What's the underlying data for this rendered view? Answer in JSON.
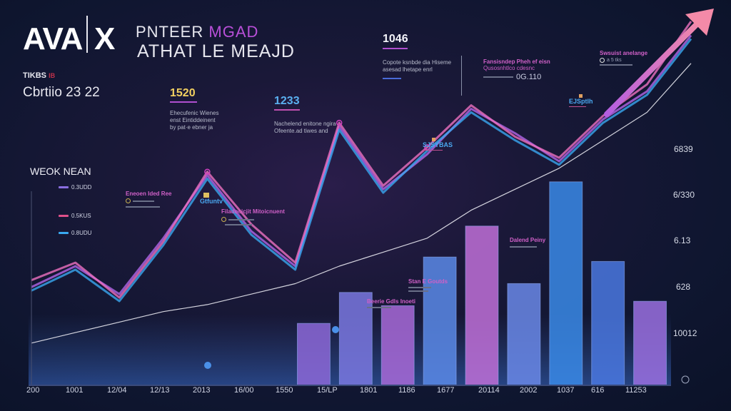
{
  "header": {
    "logo_left": "AVA",
    "logo_right": "X",
    "headline_line1_a": "PNTEER",
    "headline_line1_b": "MGAD",
    "headline_line2": "ATHAT LE MEAJD",
    "small_label": "TIKBS",
    "small_label_tag": "IB",
    "subtitle": "Cbrtiio 23 22"
  },
  "stats": [
    {
      "value": "1520",
      "color": "#f2d060",
      "desc": [
        "Ehecufenic Wienes",
        "enst Eintiddeinent",
        "by pat·e ebner ja"
      ]
    },
    {
      "value": "1233",
      "color": "#5ab0f0",
      "desc": [
        "Nachelend enitone ngira",
        "Ofeente.ad tiwes and"
      ]
    },
    {
      "value": "1046",
      "color": "#f4f4fa",
      "desc": [
        "Copote ksnbde dia Hiseme",
        "asesad lhetape enrl"
      ]
    }
  ],
  "annotations": [
    {
      "title": "Fansisndep Pheh ef eisn",
      "sub": "Qusosnhtlco cdesnc",
      "value": "0G.110"
    },
    {
      "title": "Swsuist anelange",
      "sub": "a 5 tks"
    },
    {
      "title": "Eneoen Ided Ree"
    },
    {
      "title": "Filadocicjit Mitoicnuent"
    },
    {
      "title": "Dalend Peiny"
    },
    {
      "title": "Stan E Goutds"
    },
    {
      "title": "Beerie Gdls Inoeti"
    }
  ],
  "peak_labels": [
    "Gtfuntv",
    "SJSYBAS",
    "EJSptlh"
  ],
  "legend": {
    "title": "WEOK NEAN",
    "items": [
      {
        "label": "0.3UDD",
        "color": "#8a6ee0"
      },
      {
        "label": "0.5KUS",
        "color": "#e0508a"
      },
      {
        "label": "0.8UDU",
        "color": "#3aa8f0"
      }
    ]
  },
  "chart_data": {
    "type": "line",
    "title": "PNTEER MGAD ATHAT LE MEAJD",
    "xlabel": "",
    "ylabel": "",
    "x_tick_labels": [
      "200",
      "1001",
      "12/04",
      "12/13",
      "2013",
      "16/00",
      "1550",
      "15/LP",
      "1801",
      "1186",
      "1677",
      "20114",
      "2002",
      "1037",
      "616",
      "11253"
    ],
    "y_tick_labels": [
      "6839",
      "6/330",
      "6.13",
      "628",
      "10012"
    ],
    "ylim": [
      0,
      100
    ],
    "grid": false,
    "legend_position": "left",
    "series": [
      {
        "name": "0.3UDD",
        "color": "#b266e8",
        "values": [
          24,
          30,
          22,
          38,
          56,
          40,
          30,
          70,
          52,
          62,
          75,
          68,
          60,
          72,
          80,
          96
        ]
      },
      {
        "name": "0.5KUS",
        "color": "#ee70c0",
        "values": [
          26,
          31,
          21,
          37,
          57,
          42,
          31,
          71,
          53,
          64,
          76,
          67,
          61,
          73,
          82,
          100
        ]
      },
      {
        "name": "0.8UDU",
        "color": "#3aa8f0",
        "values": [
          23,
          29,
          20,
          36,
          55,
          39,
          29,
          69,
          51,
          63,
          74,
          66,
          59,
          71,
          79,
          95
        ]
      },
      {
        "name": "trend",
        "color": "#e8e8f0",
        "values": [
          8,
          11,
          14,
          17,
          19,
          22,
          25,
          30,
          34,
          38,
          46,
          52,
          58,
          66,
          74,
          88
        ]
      }
    ],
    "buildings": [
      {
        "value": 28,
        "color": "#8c68d8"
      },
      {
        "value": 42,
        "color": "#7a78e0"
      },
      {
        "value": 36,
        "color": "#a86ad8"
      },
      {
        "value": 58,
        "color": "#5a8ae8"
      },
      {
        "value": 72,
        "color": "#c070d8"
      },
      {
        "value": 46,
        "color": "#6a88e8"
      },
      {
        "value": 92,
        "color": "#3a8ae8"
      },
      {
        "value": 56,
        "color": "#4a78e0"
      },
      {
        "value": 38,
        "color": "#9a70e0"
      }
    ]
  },
  "colors": {
    "background": "#0f1630",
    "accent_pink": "#f080b0",
    "accent_purple": "#b04fd0",
    "accent_blue": "#3aa8f0"
  }
}
